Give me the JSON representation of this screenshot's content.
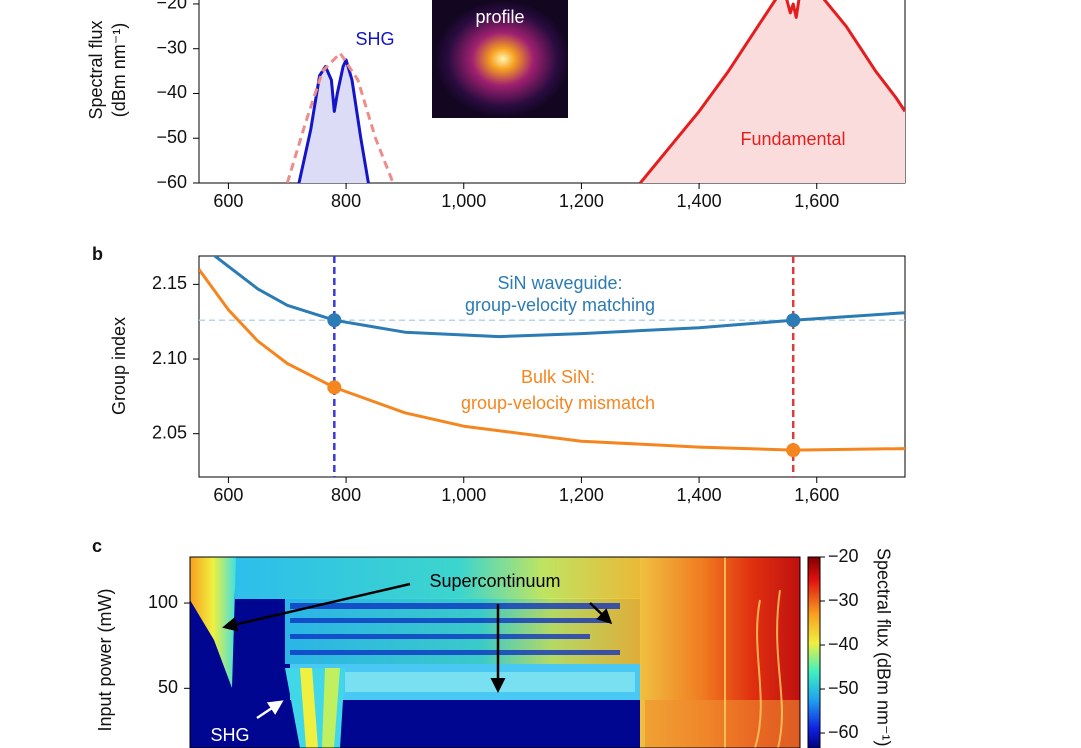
{
  "chart_data": [
    {
      "type": "line",
      "ylabel": [
        "Spectral flux",
        "(dBm nm⁻¹)"
      ],
      "xlim": [
        550,
        1750
      ],
      "ylim": [
        -60,
        -18
      ],
      "xticks": [
        600,
        800,
        {
          "value": 1000,
          "label": "1,000"
        },
        {
          "value": 1200,
          "label": "1,200"
        },
        {
          "value": 1400,
          "label": "1,400"
        },
        {
          "value": 1600,
          "label": "1,600"
        }
      ],
      "yticks": [
        {
          "value": -60,
          "label": "−60"
        },
        {
          "value": -50,
          "label": "−50"
        },
        {
          "value": -40,
          "label": "−40"
        },
        {
          "value": -30,
          "label": "−30"
        },
        {
          "value": -20,
          "label": "−20"
        }
      ],
      "annotations": [
        "SHG",
        "Fundamental"
      ],
      "inset_text": "profile",
      "series": [
        {
          "color": "#1414c8",
          "fill": "#dcdcf6",
          "x": [
            720,
            740,
            755,
            765,
            775,
            780,
            785,
            795,
            800,
            810,
            825,
            838
          ],
          "values": [
            -60,
            -48,
            -36,
            -34,
            -37,
            -44,
            -40,
            -34,
            -32.5,
            -37,
            -50,
            -60
          ]
        },
        {
          "color": "#ee8c8c",
          "dashed": true,
          "x": [
            700,
            730,
            760,
            790,
            820,
            850,
            880
          ],
          "values": [
            -60,
            -47,
            -35,
            -31,
            -37,
            -50,
            -60
          ]
        },
        {
          "color": "#e41e1e",
          "fill": "#fbdcdc",
          "x": [
            1300,
            1350,
            1400,
            1450,
            1500,
            1530,
            1545,
            1555,
            1560,
            1565,
            1572,
            1600,
            1650,
            1700,
            1735,
            1750
          ],
          "values": [
            -60,
            -52,
            -44,
            -35,
            -25,
            -19,
            -17,
            -22,
            -20,
            -23,
            -17,
            -17,
            -25,
            -35,
            -41,
            -44
          ]
        }
      ]
    },
    {
      "type": "line",
      "panel_label": "b",
      "ylabel": "Group index",
      "xlim": [
        550,
        1750
      ],
      "ylim": [
        2.021,
        2.169
      ],
      "xticks": [
        600,
        800,
        {
          "value": 1000,
          "label": "1,000"
        },
        {
          "value": 1200,
          "label": "1,200"
        },
        {
          "value": 1400,
          "label": "1,400"
        },
        {
          "value": 1600,
          "label": "1,600"
        }
      ],
      "yticks": [
        {
          "value": 2.05,
          "label": "2.05"
        },
        {
          "value": 2.1,
          "label": "2.10"
        },
        {
          "value": 2.15,
          "label": "2.15"
        }
      ],
      "annotations": [
        "SiN waveguide:",
        "group-velocity matching",
        "Bulk SiN:",
        "group-velocity mismatch"
      ],
      "vlines": [
        {
          "x": 780,
          "color": "#3a3ad8"
        },
        {
          "x": 1560,
          "color": "#e23a3a"
        }
      ],
      "hline": {
        "y": 2.126,
        "color": "#b9d4ea"
      },
      "series": [
        {
          "color": "#2b7bb4",
          "x": [
            560,
            577,
            650,
            700,
            780,
            900,
            1060,
            1200,
            1400,
            1560,
            1750
          ],
          "values": [
            2.175,
            2.169,
            2.147,
            2.136,
            2.126,
            2.118,
            2.115,
            2.117,
            2.121,
            2.126,
            2.131
          ],
          "markers": {
            "x": [
              780,
              1560
            ],
            "values": [
              2.126,
              2.126
            ]
          }
        },
        {
          "color": "#f5861f",
          "x": [
            550,
            600,
            650,
            700,
            780,
            900,
            1000,
            1200,
            1400,
            1560,
            1750
          ],
          "values": [
            2.16,
            2.133,
            2.112,
            2.097,
            2.081,
            2.064,
            2.055,
            2.045,
            2.041,
            2.039,
            2.04
          ],
          "markers": {
            "x": [
              780,
              1560
            ],
            "values": [
              2.081,
              2.039
            ]
          }
        }
      ]
    },
    {
      "type": "heatmap",
      "panel_label": "c",
      "ylabel": "Input power (mW)",
      "ylim": [
        15,
        127
      ],
      "yticks": [
        50,
        100
      ],
      "annotations": [
        "Supercontinuum",
        "SHG"
      ],
      "colorbar": {
        "label": "Spectral flux (dBm nm⁻¹)",
        "lim": [
          -63.4,
          -20
        ],
        "ticks": [
          {
            "value": -20,
            "label": "−20"
          },
          {
            "value": -30,
            "label": "−30"
          },
          {
            "value": -40,
            "label": "−40"
          },
          {
            "value": -50,
            "label": "−50"
          },
          {
            "value": -60,
            "label": "−60"
          }
        ]
      }
    }
  ]
}
